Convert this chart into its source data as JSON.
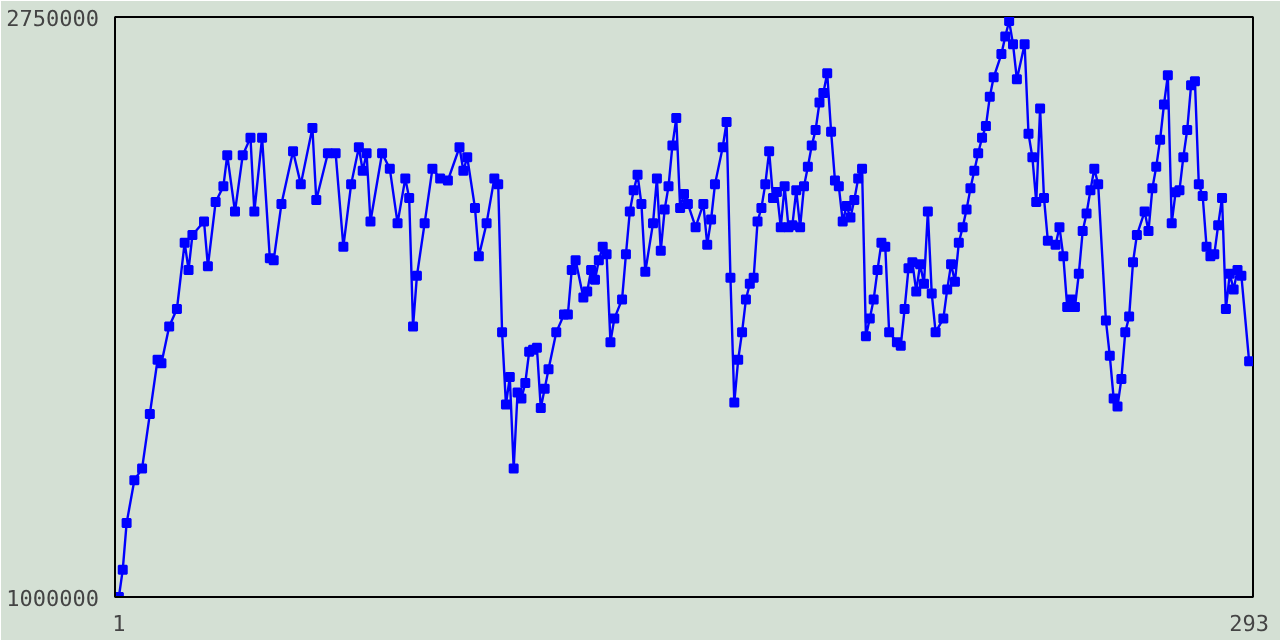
{
  "chart_data": {
    "type": "line",
    "marker": "square",
    "line_style": "solid",
    "xlim": [
      0,
      294
    ],
    "xticks": [
      1,
      293
    ],
    "ylim": [
      1000000,
      2750000
    ],
    "yticks": [
      1000000,
      2750000
    ],
    "x": [
      1,
      2,
      3,
      5,
      7,
      9,
      11,
      12,
      14,
      16,
      18,
      19,
      20,
      23,
      24,
      26,
      28,
      29,
      31,
      33,
      35,
      36,
      38,
      40,
      41,
      43,
      46,
      48,
      51,
      52,
      55,
      57,
      59,
      61,
      63,
      64,
      65,
      66,
      69,
      71,
      73,
      75,
      76,
      77,
      78,
      80,
      82,
      84,
      86,
      89,
      90,
      91,
      93,
      94,
      96,
      98,
      99,
      100,
      101,
      102,
      103,
      104,
      105,
      106,
      107,
      108,
      109,
      110,
      111,
      112,
      114,
      116,
      117,
      118,
      119,
      121,
      122,
      123,
      124,
      125,
      126,
      127,
      128,
      129,
      131,
      132,
      133,
      134,
      135,
      136,
      137,
      139,
      140,
      141,
      142,
      143,
      144,
      145,
      146,
      147,
      148,
      150,
      152,
      153,
      154,
      155,
      157,
      158,
      159,
      160,
      161,
      162,
      163,
      164,
      165,
      166,
      167,
      168,
      169,
      170,
      171,
      172,
      173,
      174,
      175,
      176,
      177,
      178,
      179,
      180,
      181,
      182,
      183,
      184,
      185,
      186,
      187,
      188,
      189,
      190,
      191,
      192,
      193,
      194,
      195,
      196,
      197,
      198,
      199,
      200,
      202,
      203,
      204,
      205,
      206,
      207,
      208,
      209,
      210,
      211,
      212,
      214,
      215,
      216,
      217,
      218,
      219,
      220,
      221,
      222,
      223,
      224,
      225,
      226,
      227,
      229,
      230,
      231,
      232,
      233,
      235,
      236,
      237,
      238,
      239,
      240,
      241,
      243,
      244,
      245,
      246,
      247,
      248,
      249,
      250,
      251,
      252,
      253,
      254,
      256,
      257,
      258,
      259,
      260,
      261,
      262,
      263,
      264,
      266,
      267,
      268,
      269,
      270,
      271,
      272,
      273,
      274,
      275,
      276,
      277,
      278,
      279,
      280,
      281,
      282,
      283,
      284,
      285,
      286,
      287,
      288,
      289,
      290,
      291,
      293
    ],
    "series": [
      {
        "color": "#0000ff",
        "values": [
          1000000,
          1082000,
          1223000,
          1352000,
          1388000,
          1552000,
          1716000,
          1705000,
          1816000,
          1869000,
          2069000,
          1987000,
          2092000,
          2133000,
          1998000,
          2192000,
          2239000,
          2333000,
          2163000,
          2333000,
          2386000,
          2163000,
          2386000,
          2022000,
          2016000,
          2186000,
          2345000,
          2245000,
          2415000,
          2198000,
          2339000,
          2339000,
          2057000,
          2245000,
          2357000,
          2286000,
          2339000,
          2133000,
          2339000,
          2292000,
          2128000,
          2263000,
          2204000,
          1816000,
          1969000,
          2128000,
          2292000,
          2263000,
          2257000,
          2357000,
          2286000,
          2327000,
          2174000,
          2028000,
          2128000,
          2263000,
          2245000,
          1799000,
          1581000,
          1664000,
          1388000,
          1617000,
          1599000,
          1646000,
          1740000,
          1746000,
          1752000,
          1570000,
          1628000,
          1687000,
          1799000,
          1852000,
          1852000,
          1987000,
          2016000,
          1904000,
          1922000,
          1987000,
          1957000,
          2016000,
          2057000,
          2034000,
          1769000,
          1840000,
          1898000,
          2034000,
          2163000,
          2227000,
          2274000,
          2186000,
          1981000,
          2128000,
          2263000,
          2045000,
          2169000,
          2239000,
          2362000,
          2445000,
          2174000,
          2216000,
          2186000,
          2116000,
          2186000,
          2063000,
          2139000,
          2245000,
          2357000,
          2433000,
          1963000,
          1587000,
          1716000,
          1799000,
          1898000,
          1945000,
          1963000,
          2133000,
          2174000,
          2245000,
          2345000,
          2204000,
          2222000,
          2116000,
          2239000,
          2116000,
          2122000,
          2227000,
          2116000,
          2239000,
          2298000,
          2362000,
          2409000,
          2492000,
          2521000,
          2580000,
          2404000,
          2257000,
          2239000,
          2133000,
          2180000,
          2145000,
          2198000,
          2263000,
          2292000,
          1787000,
          1840000,
          1898000,
          1987000,
          2069000,
          2057000,
          1799000,
          1769000,
          1758000,
          1869000,
          1992000,
          2010000,
          1922000,
          2004000,
          1945000,
          2163000,
          1916000,
          1799000,
          1840000,
          1928000,
          2004000,
          1951000,
          2069000,
          2116000,
          2169000,
          2233000,
          2286000,
          2339000,
          2386000,
          2421000,
          2509000,
          2568000,
          2638000,
          2691000,
          2738000,
          2668000,
          2562000,
          2668000,
          2398000,
          2327000,
          2192000,
          2474000,
          2204000,
          2075000,
          2063000,
          2116000,
          2028000,
          1875000,
          1898000,
          1875000,
          1975000,
          2104000,
          2157000,
          2227000,
          2292000,
          2245000,
          1834000,
          1728000,
          1599000,
          1575000,
          1658000,
          1799000,
          1846000,
          2010000,
          2092000,
          2163000,
          2104000,
          2233000,
          2298000,
          2380000,
          2486000,
          2574000,
          2128000,
          2221000,
          2227000,
          2327000,
          2409000,
          2544000,
          2556000,
          2245000,
          2210000,
          2057000,
          2028000,
          2034000,
          2122000,
          2204000,
          1869000,
          1975000,
          1928000,
          1987000,
          1969000,
          1711000
        ]
      }
    ]
  }
}
